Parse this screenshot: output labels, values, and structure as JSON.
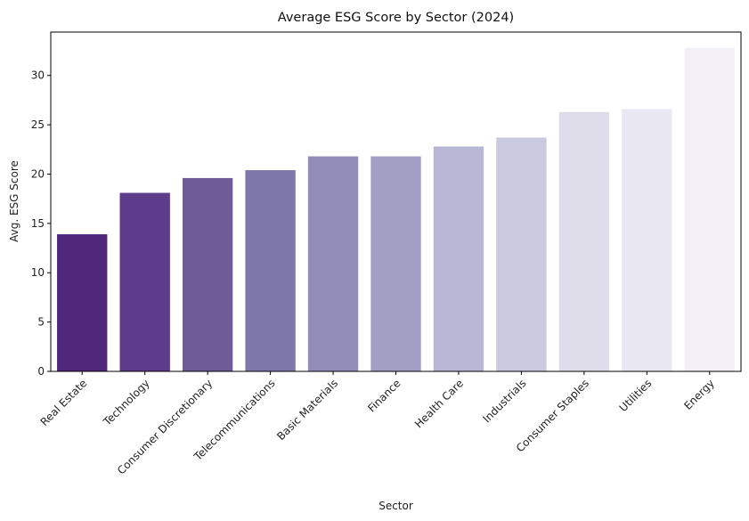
{
  "chart_data": {
    "type": "bar",
    "title": "Average ESG Score by Sector (2024)",
    "xlabel": "Sector",
    "ylabel": "Avg. ESG Score",
    "categories": [
      "Real Estate",
      "Technology",
      "Consumer Discretionary",
      "Telecommunications",
      "Basic Materials",
      "Finance",
      "Health Care",
      "Industrials",
      "Consumer Staples",
      "Utilities",
      "Energy"
    ],
    "values": [
      13.9,
      18.1,
      19.6,
      20.4,
      21.8,
      21.8,
      22.8,
      23.7,
      26.3,
      26.6,
      32.8
    ],
    "ylim": [
      0,
      34.4
    ],
    "yticks": [
      0,
      5,
      10,
      15,
      20,
      25,
      30
    ],
    "grid": false,
    "legend": "none",
    "colors": [
      "#4f277b",
      "#5e3c8c",
      "#6f5b98",
      "#7e77aa",
      "#918db8",
      "#a39fc4",
      "#b8b6d5",
      "#c9c9df",
      "#dedde9",
      "#e9e8f2",
      "#f3f1f7"
    ]
  }
}
